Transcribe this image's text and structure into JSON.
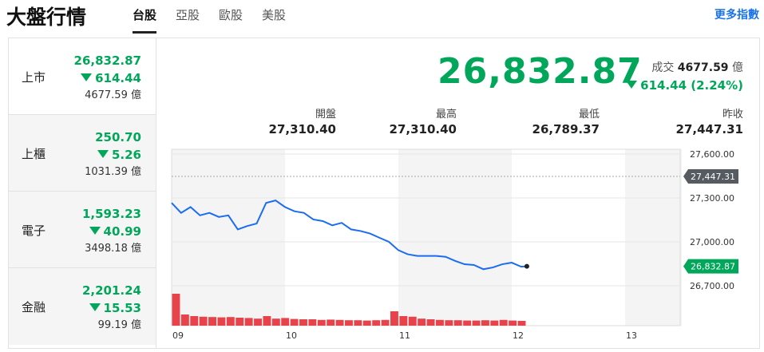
{
  "header": {
    "title": "大盤行情",
    "tabs": [
      {
        "label": "台股",
        "active": true
      },
      {
        "label": "亞股"
      },
      {
        "label": "歐股"
      },
      {
        "label": "美股"
      }
    ],
    "more": "更多指數"
  },
  "markets": [
    {
      "name": "上市",
      "price": "26,832.87",
      "change": "614.44",
      "volume": "4677.59 億",
      "selected": true
    },
    {
      "name": "上櫃",
      "price": "250.70",
      "change": "5.26",
      "volume": "1031.39 億"
    },
    {
      "name": "電子",
      "price": "1,593.23",
      "change": "40.99",
      "volume": "3498.18 億"
    },
    {
      "name": "金融",
      "price": "2,201.24",
      "change": "15.53",
      "volume": "99.19 億"
    }
  ],
  "quote": {
    "price": "26,832.87",
    "volume_label": "成交",
    "volume": "4677.59",
    "volume_unit": "億",
    "change": "614.44 (2.24%)",
    "stats": [
      {
        "label": "開盤",
        "value": "27,310.40"
      },
      {
        "label": "最高",
        "value": "27,310.40"
      },
      {
        "label": "最低",
        "value": "26,789.37"
      },
      {
        "label": "昨收",
        "value": "27,447.31"
      }
    ]
  },
  "colors": {
    "down": "#00a65a",
    "line": "#1a6cf0",
    "volume": "#e8424a",
    "prev_close_tag": "#555b61"
  },
  "chart_data": {
    "type": "line",
    "x_ticks": [
      "09",
      "10",
      "11",
      "12",
      "13"
    ],
    "y_ticks": [
      "27,600.00",
      "27,300.00",
      "27,000.00",
      "26,700.00"
    ],
    "ylim": [
      26700,
      27600
    ],
    "xlim_hours": [
      9,
      13.5
    ],
    "prev_close": 27447.31,
    "prev_close_label": "27,447.31",
    "last_label": "26,832.87",
    "series": [
      {
        "times": [
          "09:00",
          "09:05",
          "09:10",
          "09:15",
          "09:20",
          "09:25",
          "09:30",
          "09:35",
          "09:40",
          "09:45",
          "09:50",
          "09:55",
          "10:00",
          "10:05",
          "10:10",
          "10:15",
          "10:20",
          "10:25",
          "10:30",
          "10:35",
          "10:40",
          "10:45",
          "10:50",
          "10:55",
          "11:00",
          "11:05",
          "11:10",
          "11:15",
          "11:20",
          "11:25",
          "11:30",
          "11:35",
          "11:40",
          "11:45",
          "11:50",
          "11:55",
          "12:00",
          "12:05",
          "12:08"
        ],
        "values": [
          27266,
          27198,
          27238,
          27181,
          27198,
          27170,
          27181,
          27085,
          27108,
          27125,
          27266,
          27283,
          27238,
          27209,
          27198,
          27153,
          27142,
          27113,
          27130,
          27085,
          27074,
          27057,
          27028,
          27000,
          26943,
          26915,
          26904,
          26904,
          26904,
          26898,
          26870,
          26847,
          26842,
          26813,
          26825,
          26847,
          26858,
          26830,
          26832.87
        ]
      }
    ],
    "volume": [
      100,
      35,
      30,
      28,
      27,
      26,
      27,
      25,
      24,
      22,
      30,
      22,
      24,
      21,
      20,
      20,
      18,
      19,
      18,
      17,
      17,
      16,
      17,
      18,
      45,
      30,
      28,
      22,
      20,
      18,
      17,
      17,
      16,
      16,
      17,
      16,
      18,
      16,
      15
    ]
  }
}
